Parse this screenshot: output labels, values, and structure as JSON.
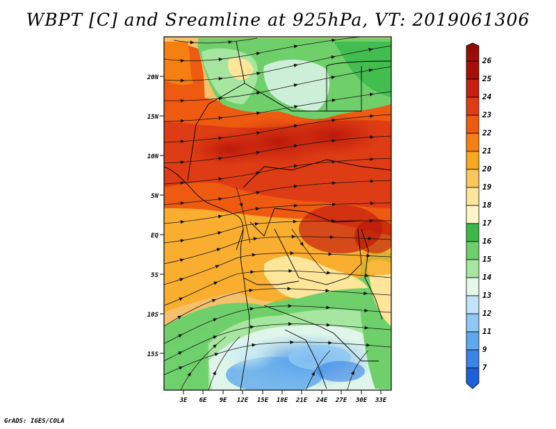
{
  "title": "WBPT [C] and Sreamline at 925hPa, VT: 2019061306",
  "credit": "GrADS: IGES/COLA",
  "map": {
    "lat_labels": [
      "20N",
      "15N",
      "10N",
      "5N",
      "EQ",
      "5S",
      "10S",
      "15S"
    ],
    "lon_labels": [
      "3E",
      "6E",
      "9E",
      "12E",
      "15E",
      "18E",
      "21E",
      "24E",
      "27E",
      "30E",
      "33E"
    ],
    "lat_range": [
      -20,
      25
    ],
    "lon_range": [
      0,
      34
    ]
  },
  "colorbar": {
    "levels": [
      "26",
      "25",
      "24",
      "23",
      "22",
      "21",
      "20",
      "19",
      "18",
      "17",
      "16",
      "15",
      "14",
      "13",
      "12",
      "11",
      "9",
      "7"
    ],
    "colors": [
      "#a50f05",
      "#c8200f",
      "#de3c14",
      "#ee5a0f",
      "#f57f11",
      "#f9a71c",
      "#fbc75a",
      "#fde59a",
      "#fff6c8",
      "#3cb84b",
      "#6fd06b",
      "#a6e6a0",
      "#e2f8e8",
      "#bfe3f8",
      "#8fc8f4",
      "#5ea9ec",
      "#3984e6",
      "#1d5fd8"
    ]
  }
}
